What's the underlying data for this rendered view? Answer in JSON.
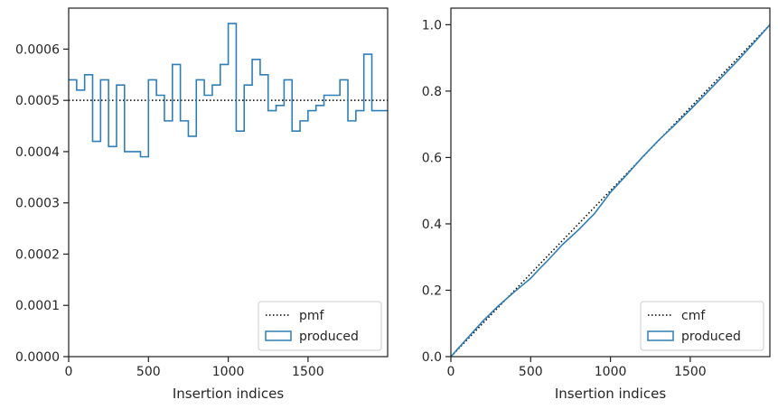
{
  "colors": {
    "produced": "#2f7fb6",
    "reference": "#000000",
    "axes": "#262626",
    "legend_border": "#cccccc"
  },
  "chart_data": [
    {
      "type": "step",
      "xlabel": "Insertion indices",
      "ylabel": "",
      "xlim": [
        0,
        1999
      ],
      "ylim": [
        0,
        0.00068
      ],
      "grid": false,
      "legend": "bottom-right",
      "x_ticks": [
        0,
        500,
        1000,
        1500
      ],
      "x_tick_labels": [
        "0",
        "500",
        "1000",
        "1500"
      ],
      "y_ticks": [
        0,
        0.0001,
        0.0002,
        0.0003,
        0.0004,
        0.0005,
        0.0006
      ],
      "y_tick_labels": [
        "0.0000",
        "0.0001",
        "0.0002",
        "0.0003",
        "0.0004",
        "0.0005",
        "0.0006"
      ],
      "bin_edges": [
        0,
        50,
        100,
        150,
        200,
        250,
        300,
        350,
        400,
        450,
        500,
        550,
        600,
        650,
        700,
        750,
        800,
        850,
        900,
        950,
        1000,
        1050,
        1100,
        1150,
        1200,
        1250,
        1300,
        1350,
        1400,
        1450,
        1500,
        1550,
        1600,
        1650,
        1700,
        1750,
        1800,
        1850,
        1900,
        1950,
        2000
      ],
      "series": [
        {
          "name": "pmf",
          "style": "dotted",
          "values": [
            0.0005,
            0.0005
          ]
        },
        {
          "name": "produced",
          "style": "step",
          "values": [
            0.00054,
            0.00052,
            0.00055,
            0.00042,
            0.00054,
            0.00041,
            0.00053,
            0.0004,
            0.0004,
            0.00039,
            0.00054,
            0.00051,
            0.00046,
            0.00057,
            0.00046,
            0.00043,
            0.00054,
            0.00051,
            0.00053,
            0.00057,
            0.00065,
            0.00044,
            0.00053,
            0.00058,
            0.00055,
            0.00048,
            0.00049,
            0.00054,
            0.00044,
            0.00046,
            0.00048,
            0.00049,
            0.00051,
            0.00051,
            0.00054,
            0.00046,
            0.00048,
            0.00059,
            0.00048,
            0.00048
          ]
        }
      ]
    },
    {
      "type": "line",
      "xlabel": "Insertion indices",
      "ylabel": "",
      "xlim": [
        0,
        1999
      ],
      "ylim": [
        0,
        1.05
      ],
      "grid": false,
      "legend": "bottom-right",
      "x_ticks": [
        0,
        500,
        1000,
        1500
      ],
      "x_tick_labels": [
        "0",
        "500",
        "1000",
        "1500"
      ],
      "y_ticks": [
        0,
        0.2,
        0.4,
        0.6,
        0.8,
        1.0
      ],
      "y_tick_labels": [
        "0.0",
        "0.2",
        "0.4",
        "0.6",
        "0.8",
        "1.0"
      ],
      "series": [
        {
          "name": "cmf",
          "style": "dotted",
          "x": [
            0,
            1999
          ],
          "y": [
            0,
            1.0
          ]
        },
        {
          "name": "produced",
          "style": "line",
          "x": [
            0,
            100,
            200,
            300,
            400,
            500,
            550,
            600,
            700,
            800,
            900,
            1000,
            1100,
            1200,
            1300,
            1400,
            1500,
            1600,
            1700,
            1800,
            1900,
            1999
          ],
          "y": [
            0,
            0.054,
            0.107,
            0.154,
            0.196,
            0.236,
            0.262,
            0.286,
            0.338,
            0.382,
            0.431,
            0.495,
            0.547,
            0.601,
            0.651,
            0.697,
            0.744,
            0.793,
            0.843,
            0.893,
            0.946,
            1.0
          ]
        }
      ]
    }
  ]
}
